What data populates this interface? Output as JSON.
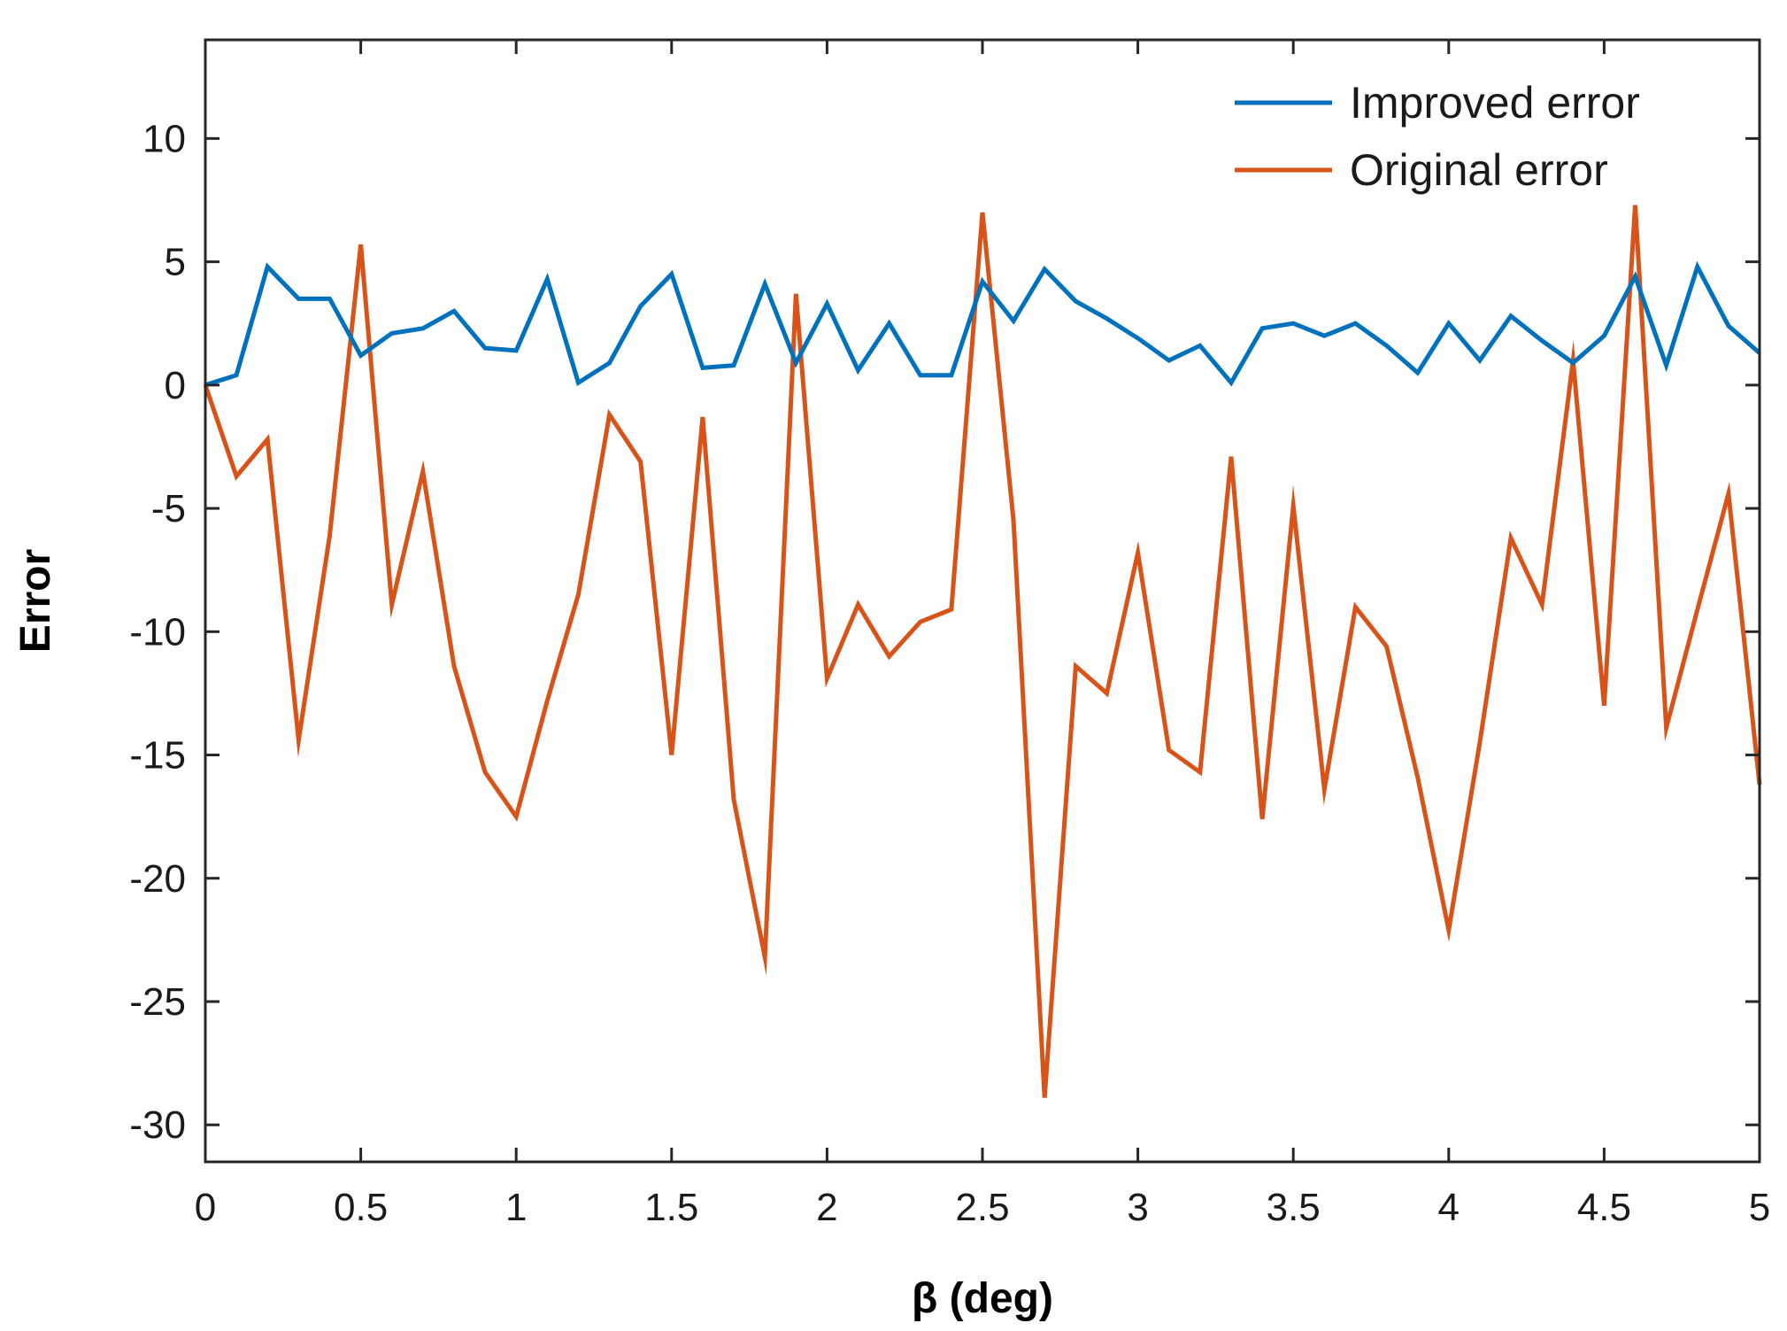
{
  "chart_data": {
    "type": "line",
    "title": "",
    "xlabel": "β (deg)",
    "ylabel": "Error",
    "xlim": [
      0,
      5
    ],
    "ylim": [
      -31.5,
      14
    ],
    "x_ticks": [
      0,
      0.5,
      1,
      1.5,
      2,
      2.5,
      3,
      3.5,
      4,
      4.5,
      5
    ],
    "x_tick_labels": [
      "0",
      "0.5",
      "1",
      "1.5",
      "2",
      "2.5",
      "3",
      "3.5",
      "4",
      "4.5",
      "5"
    ],
    "y_ticks": [
      10,
      5,
      0,
      -5,
      -10,
      -15,
      -20,
      -25,
      -30
    ],
    "y_tick_labels": [
      "10",
      "5",
      "0",
      "-5",
      "-10",
      "-15",
      "-20",
      "-25",
      "-30"
    ],
    "grid": false,
    "legend_position": "top-right",
    "x": [
      0,
      0.1,
      0.2,
      0.3,
      0.4,
      0.5,
      0.6,
      0.7,
      0.8,
      0.9,
      1.0,
      1.1,
      1.2,
      1.3,
      1.4,
      1.5,
      1.6,
      1.7,
      1.8,
      1.9,
      2.0,
      2.1,
      2.2,
      2.3,
      2.4,
      2.5,
      2.6,
      2.7,
      2.8,
      2.9,
      3.0,
      3.1,
      3.2,
      3.3,
      3.4,
      3.5,
      3.6,
      3.7,
      3.8,
      3.9,
      4.0,
      4.1,
      4.2,
      4.3,
      4.4,
      4.5,
      4.6,
      4.7,
      4.8,
      4.9,
      5.0
    ],
    "series": [
      {
        "name": "Improved error",
        "color": "#0072bd",
        "values": [
          0.0,
          0.4,
          4.8,
          3.5,
          3.5,
          1.2,
          2.1,
          2.3,
          3.0,
          1.5,
          1.4,
          4.3,
          0.1,
          0.9,
          3.2,
          4.5,
          0.7,
          0.8,
          4.1,
          0.9,
          3.3,
          0.6,
          2.5,
          0.4,
          0.4,
          4.2,
          2.6,
          4.7,
          3.4,
          2.7,
          1.9,
          1.0,
          1.6,
          0.1,
          2.3,
          2.5,
          2.0,
          2.5,
          1.6,
          0.5,
          2.5,
          1.0,
          2.8,
          1.8,
          0.9,
          2.0,
          4.4,
          0.8,
          4.8,
          2.4,
          1.3
        ]
      },
      {
        "name": "Original error",
        "color": "#d95319",
        "values": [
          0.0,
          -3.7,
          -2.2,
          -14.4,
          -6.1,
          5.7,
          -8.9,
          -3.5,
          -11.4,
          -15.7,
          -17.5,
          -12.8,
          -8.5,
          -1.2,
          -3.1,
          -15.0,
          -1.3,
          -16.8,
          -23.2,
          3.7,
          -11.9,
          -8.9,
          -11.0,
          -9.6,
          -9.1,
          7.0,
          -5.5,
          -28.9,
          -11.4,
          -12.5,
          -6.8,
          -14.8,
          -15.7,
          -2.9,
          -17.6,
          -4.9,
          -16.4,
          -9.0,
          -10.6,
          -15.9,
          -22.1,
          -14.5,
          -6.2,
          -8.9,
          1.0,
          -13.0,
          7.3,
          -13.9,
          -9.1,
          -4.4,
          -16.2
        ]
      }
    ]
  }
}
